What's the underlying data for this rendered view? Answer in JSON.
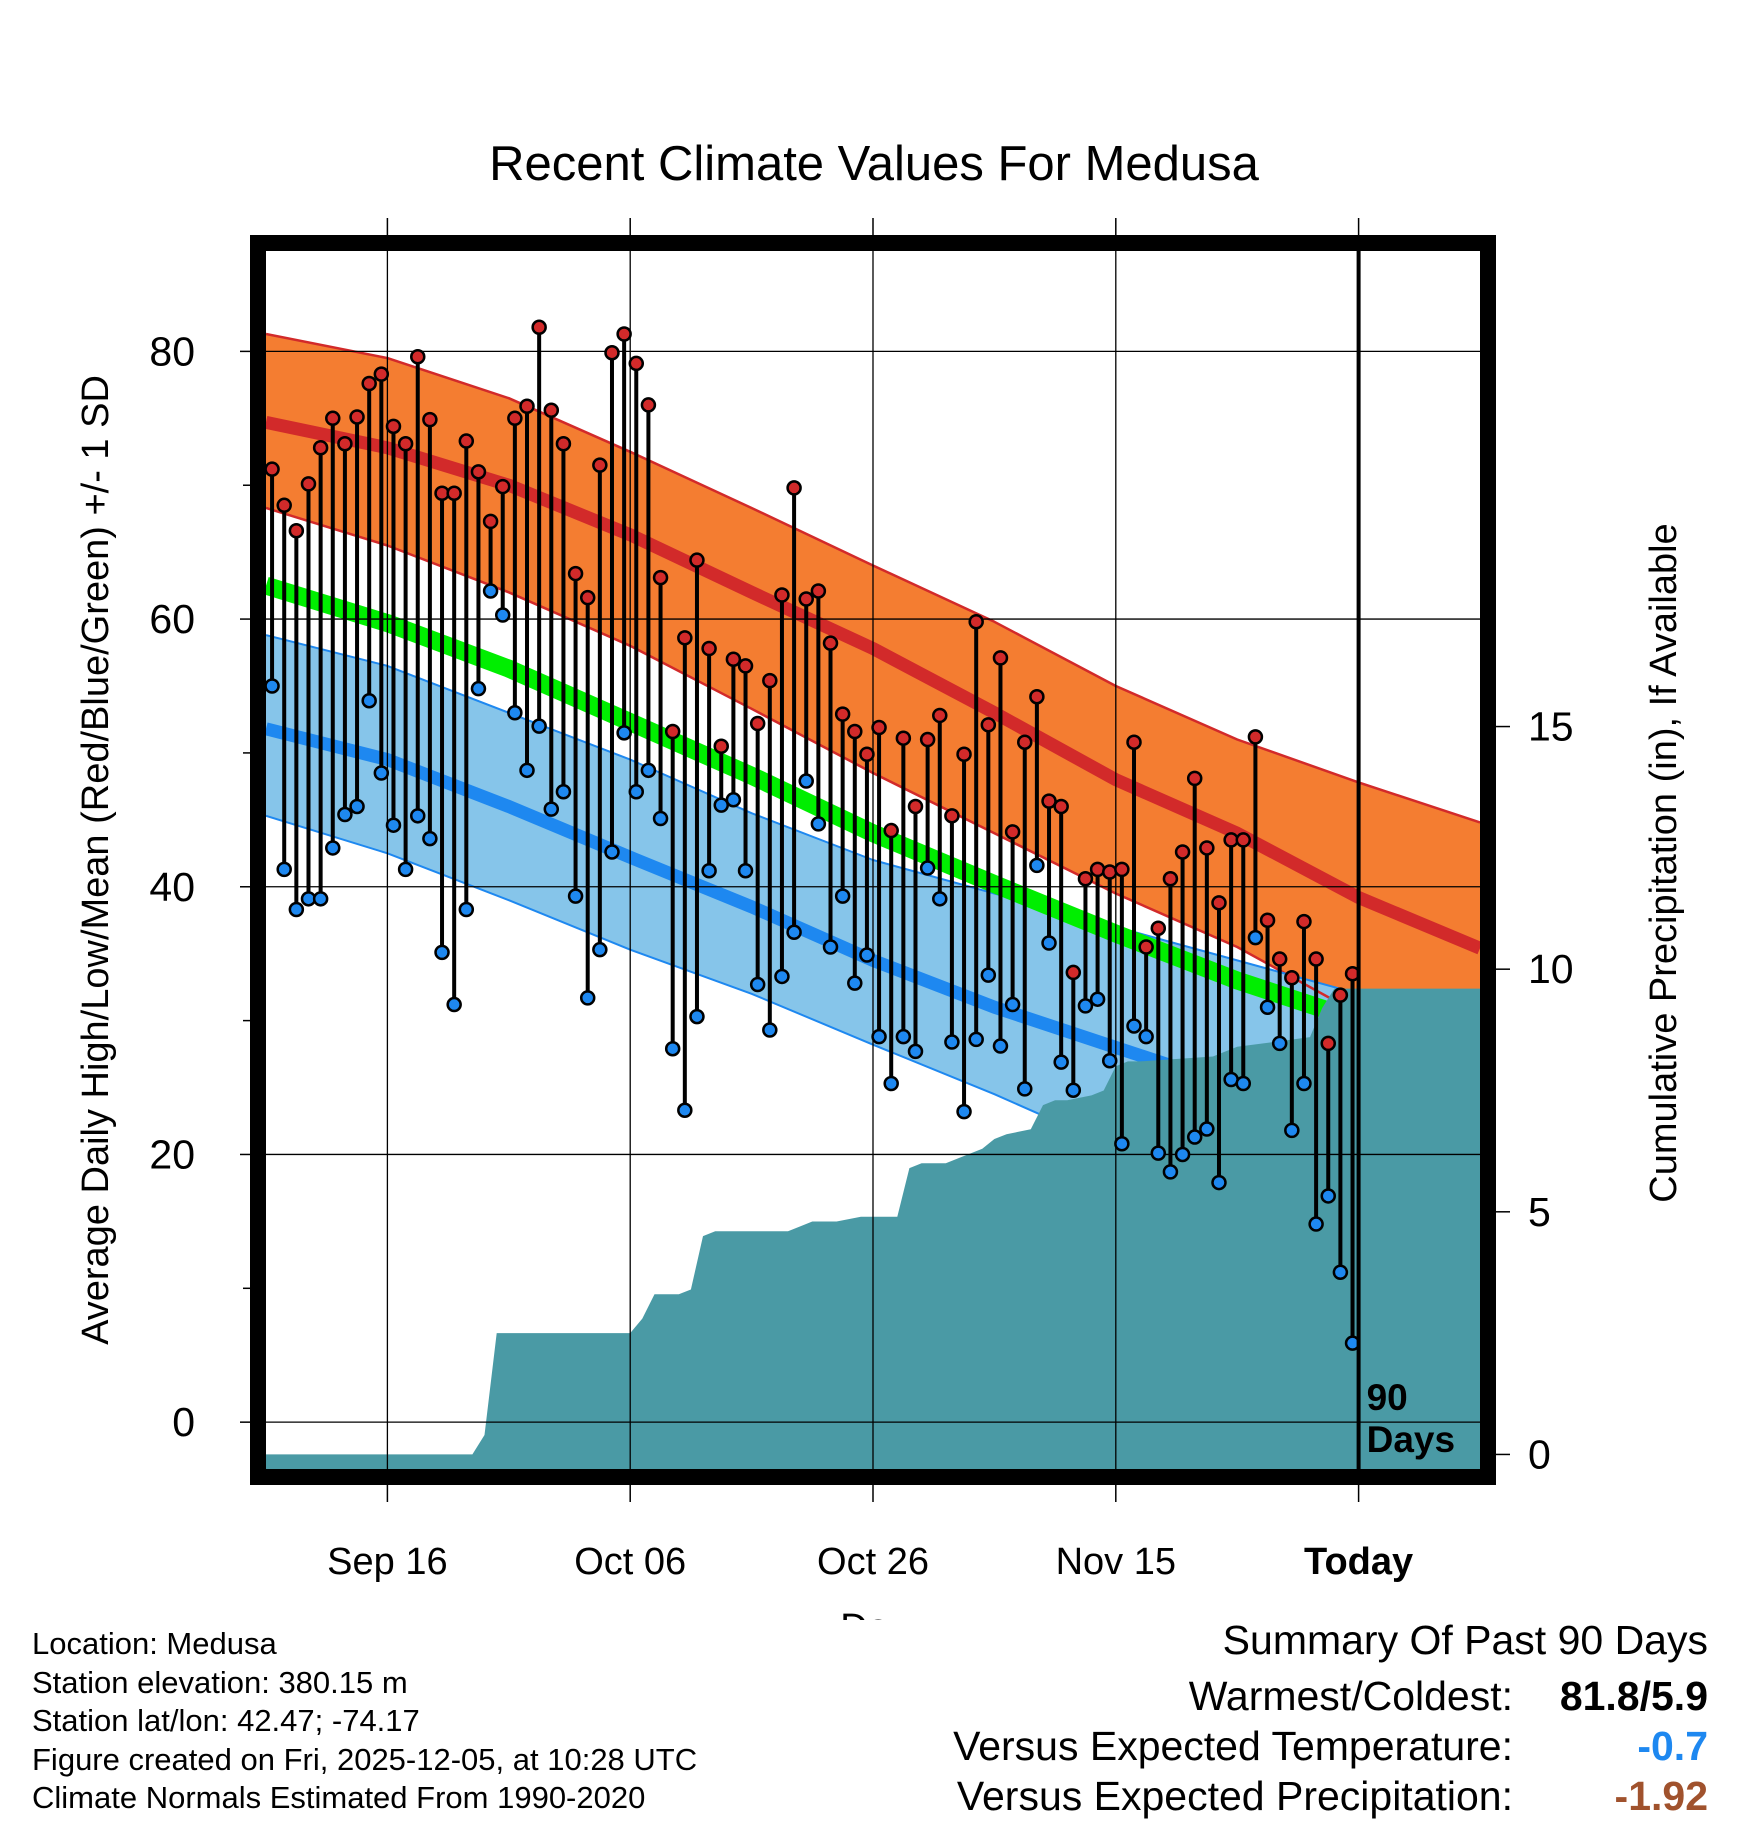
{
  "page": {
    "title": "Recent Climate Values For Medusa"
  },
  "colors": {
    "high_band": "#f47d31",
    "high_normal": "#d22a2a",
    "low_band": "#86c5ea",
    "low_normal": "#1e88f0",
    "mean_normal": "#00ee00",
    "dark_red": "#9b1717",
    "precip_fill": "#4a9aa5",
    "high_marker": "#d22a2a",
    "low_marker": "#1e88f0"
  },
  "chart_data": {
    "type": "line",
    "title": "Recent Climate Values For Medusa",
    "xlabel": "Day",
    "ylabel": "Average Daily High/Low/Mean (Red/Blue/Green) +/- 1 SD",
    "y2label": "Cumulative Precipitation (in), If Available",
    "ylim": [
      -3.5,
      87.5
    ],
    "y2lim": [
      -0.3,
      24.8
    ],
    "xlim": [
      0,
      100
    ],
    "y_ticks": [
      0,
      20,
      40,
      60,
      80
    ],
    "y_minor_ticks": [
      10,
      30,
      50,
      70
    ],
    "y2_ticks": [
      0,
      5,
      10,
      15
    ],
    "x_ticks": [
      {
        "day": 10,
        "label": "Sep 16"
      },
      {
        "day": 30,
        "label": "Oct 06"
      },
      {
        "day": 50,
        "label": "Oct 26"
      },
      {
        "day": 70,
        "label": "Nov 15"
      },
      {
        "day": 90,
        "label": "Today"
      }
    ],
    "today_day": 90,
    "today_annotation": [
      "90",
      "Days"
    ],
    "normals": {
      "days": [
        0,
        10,
        20,
        30,
        40,
        50,
        60,
        70,
        80,
        90,
        100
      ],
      "high_upper": [
        81.3,
        79.5,
        76.5,
        72.5,
        68.3,
        64.0,
        59.8,
        55.0,
        51.0,
        47.8,
        44.8
      ],
      "high_mean": [
        74.7,
        72.8,
        70.0,
        66.3,
        62.0,
        57.8,
        53.0,
        48.0,
        44.0,
        39.2,
        35.4
      ],
      "high_lower": [
        68.3,
        65.5,
        62.0,
        58.0,
        53.3,
        48.5,
        44.0,
        39.5,
        35.5,
        30.5,
        26.0
      ],
      "mean": [
        62.5,
        59.7,
        56.3,
        52.3,
        48.3,
        44.0,
        40.2,
        36.5,
        33.0,
        30.0,
        27.5
      ],
      "low_upper": [
        58.8,
        56.5,
        53.0,
        49.5,
        45.5,
        42.0,
        39.5,
        37.0,
        34.5,
        32.0,
        29.7
      ],
      "low_mean": [
        51.8,
        49.5,
        46.0,
        42.2,
        38.5,
        34.5,
        31.0,
        28.0,
        25.0,
        22.0,
        19.5
      ],
      "low_lower": [
        45.3,
        42.5,
        39.0,
        35.3,
        32.0,
        28.2,
        24.5,
        20.5,
        17.0,
        13.0,
        9.0
      ]
    },
    "series": [
      {
        "name": "Daily High",
        "values": [
          71.2,
          68.5,
          66.6,
          70.1,
          72.8,
          75.0,
          73.1,
          75.1,
          77.6,
          78.3,
          74.4,
          73.1,
          79.6,
          74.9,
          69.4,
          69.4,
          73.3,
          71.0,
          67.3,
          69.9,
          75.0,
          75.9,
          81.8,
          75.6,
          73.1,
          63.4,
          61.6,
          71.5,
          79.9,
          81.3,
          79.1,
          76.0,
          63.1,
          51.6,
          58.6,
          64.4,
          57.8,
          50.5,
          57.0,
          56.5,
          52.2,
          55.4,
          61.8,
          69.8,
          61.5,
          62.1,
          58.2,
          52.9,
          51.6,
          49.9,
          51.9,
          44.2,
          51.1,
          46.0,
          51.0,
          52.8,
          45.3,
          49.9,
          59.8,
          52.1,
          57.1,
          44.1,
          50.8,
          54.2,
          46.4,
          46.0,
          33.6,
          40.6,
          41.3,
          41.1,
          41.3,
          50.8,
          35.5,
          36.9,
          40.6,
          42.6,
          48.1,
          42.9,
          38.8,
          43.5,
          43.5,
          51.2,
          37.5,
          34.6,
          33.2,
          37.4,
          34.6,
          28.3,
          31.9,
          33.5
        ]
      },
      {
        "name": "Daily Low",
        "values": [
          55.0,
          41.3,
          38.3,
          39.1,
          39.1,
          42.9,
          45.4,
          46.0,
          53.9,
          48.5,
          44.6,
          41.3,
          45.3,
          43.6,
          35.1,
          31.2,
          38.3,
          54.8,
          62.1,
          60.3,
          53.0,
          48.7,
          52.0,
          45.8,
          47.1,
          39.3,
          31.7,
          35.3,
          42.6,
          51.5,
          47.1,
          48.7,
          45.1,
          27.9,
          23.3,
          30.3,
          41.2,
          46.1,
          46.5,
          41.2,
          32.7,
          29.3,
          33.3,
          36.6,
          47.9,
          44.7,
          35.5,
          39.3,
          32.8,
          34.9,
          28.8,
          25.3,
          28.8,
          27.7,
          41.4,
          39.1,
          28.4,
          23.2,
          28.6,
          33.4,
          28.1,
          31.2,
          24.9,
          41.6,
          35.8,
          26.9,
          24.8,
          31.1,
          31.6,
          27.0,
          20.8,
          29.6,
          28.8,
          20.1,
          18.7,
          20.0,
          21.3,
          21.9,
          17.9,
          25.6,
          25.3,
          36.2,
          31.0,
          28.3,
          21.8,
          25.3,
          14.8,
          16.9,
          11.2,
          5.9
        ]
      }
    ],
    "precip_cumulative": {
      "days": [
        0,
        17,
        18,
        19,
        20,
        30,
        31,
        32,
        34,
        35,
        36,
        37,
        39,
        43,
        44,
        45,
        47,
        49,
        52,
        53,
        54,
        56,
        57,
        59,
        60,
        61,
        63,
        64,
        65,
        66,
        68,
        69,
        70,
        71,
        72,
        78,
        80,
        83,
        86,
        87,
        88,
        100
      ],
      "values": [
        0.0,
        0.0,
        0.4,
        2.5,
        2.5,
        2.5,
        2.8,
        3.3,
        3.3,
        3.4,
        4.5,
        4.6,
        4.6,
        4.6,
        4.7,
        4.8,
        4.8,
        4.9,
        4.9,
        5.9,
        6.0,
        6.0,
        6.1,
        6.3,
        6.5,
        6.6,
        6.7,
        7.2,
        7.3,
        7.3,
        7.4,
        7.5,
        8.0,
        8.1,
        8.1,
        8.2,
        8.4,
        8.5,
        8.6,
        9.2,
        9.6,
        9.6
      ]
    }
  },
  "metadata": {
    "lines": [
      "Location: Medusa",
      "Station elevation: 380.15 m",
      "Station lat/lon: 42.47; -74.17",
      "Figure created on Fri, 2025-12-05, at 10:28 UTC",
      "Climate Normals Estimated From 1990-2020"
    ]
  },
  "summary": {
    "title": "Summary Of Past 90 Days",
    "rows": [
      {
        "label": "Warmest/Coldest:",
        "value": "81.8/5.9",
        "color": "#000000"
      },
      {
        "label": "Versus Expected Temperature:",
        "value": "-0.7",
        "color": "#1e88f0"
      },
      {
        "label": "Versus Expected Precipitation:",
        "value": "-1.92",
        "color": "#a0522d"
      }
    ]
  }
}
